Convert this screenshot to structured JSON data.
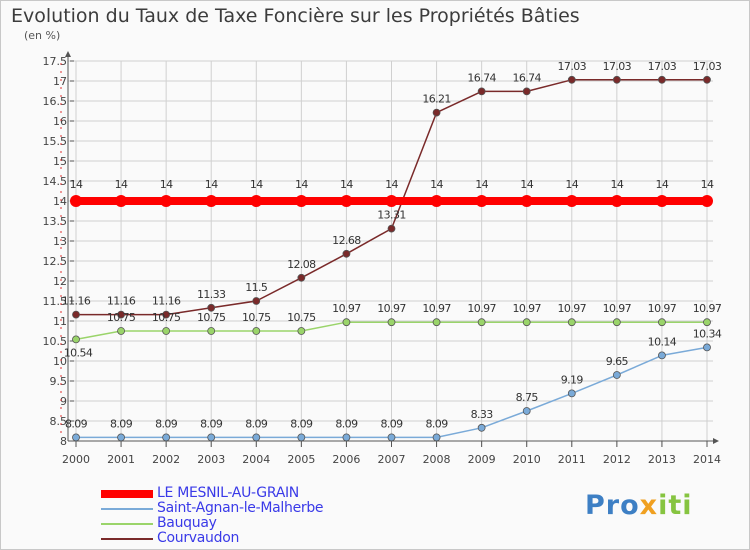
{
  "title": "Evolution du Taux de Taxe Foncière sur les Propriétés Bâties",
  "unit_label": "(en %)",
  "logo": {
    "part1": "Pro",
    "part2": "x",
    "part3": "iti"
  },
  "colors": {
    "background": "#fafafa",
    "grid": "#d0d0d0",
    "axis": "#555555"
  },
  "chart_data": {
    "type": "line",
    "title": "Evolution du Taux de Taxe Foncière sur les Propriétés Bâties",
    "ylabel": "(en %)",
    "xlabel": "",
    "ylim": [
      8,
      17.5
    ],
    "yticks": [
      "8",
      "8.5",
      "9",
      "9.5",
      "10",
      "10.5",
      "11",
      "11.5",
      "12",
      "12.5",
      "13",
      "13.5",
      "14",
      "14.5",
      "15",
      "15.5",
      "16",
      "16.5",
      "17",
      "17.5"
    ],
    "categories": [
      "2000",
      "2001",
      "2002",
      "2003",
      "2004",
      "2005",
      "2006",
      "2007",
      "2008",
      "2009",
      "2010",
      "2011",
      "2012",
      "2013",
      "2014"
    ],
    "grid": true,
    "legend_position": "bottom-left",
    "series": [
      {
        "name": "LE MESNIL-AU-GRAIN",
        "color": "#ff0000",
        "values": [
          14,
          14,
          14,
          14,
          14,
          14,
          14,
          14,
          14,
          14,
          14,
          14,
          14,
          14,
          14
        ],
        "labels": [
          "14",
          "14",
          "14",
          "14",
          "14",
          "14",
          "14",
          "14",
          "14",
          "14",
          "14",
          "14",
          "14",
          "14",
          "14"
        ]
      },
      {
        "name": "Saint-Agnan-le-Malherbe",
        "color": "#7aaad8",
        "values": [
          8.09,
          8.09,
          8.09,
          8.09,
          8.09,
          8.09,
          8.09,
          8.09,
          8.09,
          8.33,
          8.75,
          9.19,
          9.65,
          10.14,
          10.34
        ],
        "labels": [
          "8.09",
          "8.09",
          "8.09",
          "8.09",
          "8.09",
          "8.09",
          "8.09",
          "8.09",
          "8.09",
          "8.33",
          "8.75",
          "9.19",
          "9.65",
          "10.14",
          "10.34"
        ]
      },
      {
        "name": "Bauquay",
        "color": "#9ad46a",
        "values": [
          10.54,
          10.75,
          10.75,
          10.75,
          10.75,
          10.75,
          10.97,
          10.97,
          10.97,
          10.97,
          10.97,
          10.97,
          10.97,
          10.97,
          10.97
        ],
        "labels": [
          "10.54",
          "10.75",
          "10.75",
          "10.75",
          "10.75",
          "10.75",
          "10.97",
          "10.97",
          "10.97",
          "10.97",
          "10.97",
          "10.97",
          "10.97",
          "10.97",
          "10.97"
        ]
      },
      {
        "name": "Courvaudon",
        "color": "#7a2a2a",
        "values": [
          11.16,
          11.16,
          11.16,
          11.33,
          11.5,
          12.08,
          12.68,
          13.31,
          16.21,
          16.74,
          16.74,
          17.03,
          17.03,
          17.03,
          17.03
        ],
        "labels": [
          "11.16",
          "11.16",
          "11.16",
          "11.33",
          "11.5",
          "12.08",
          "12.68",
          "13.31",
          "16.21",
          "16.74",
          "16.74",
          "17.03",
          "17.03",
          "17.03",
          "17.03"
        ]
      }
    ]
  }
}
